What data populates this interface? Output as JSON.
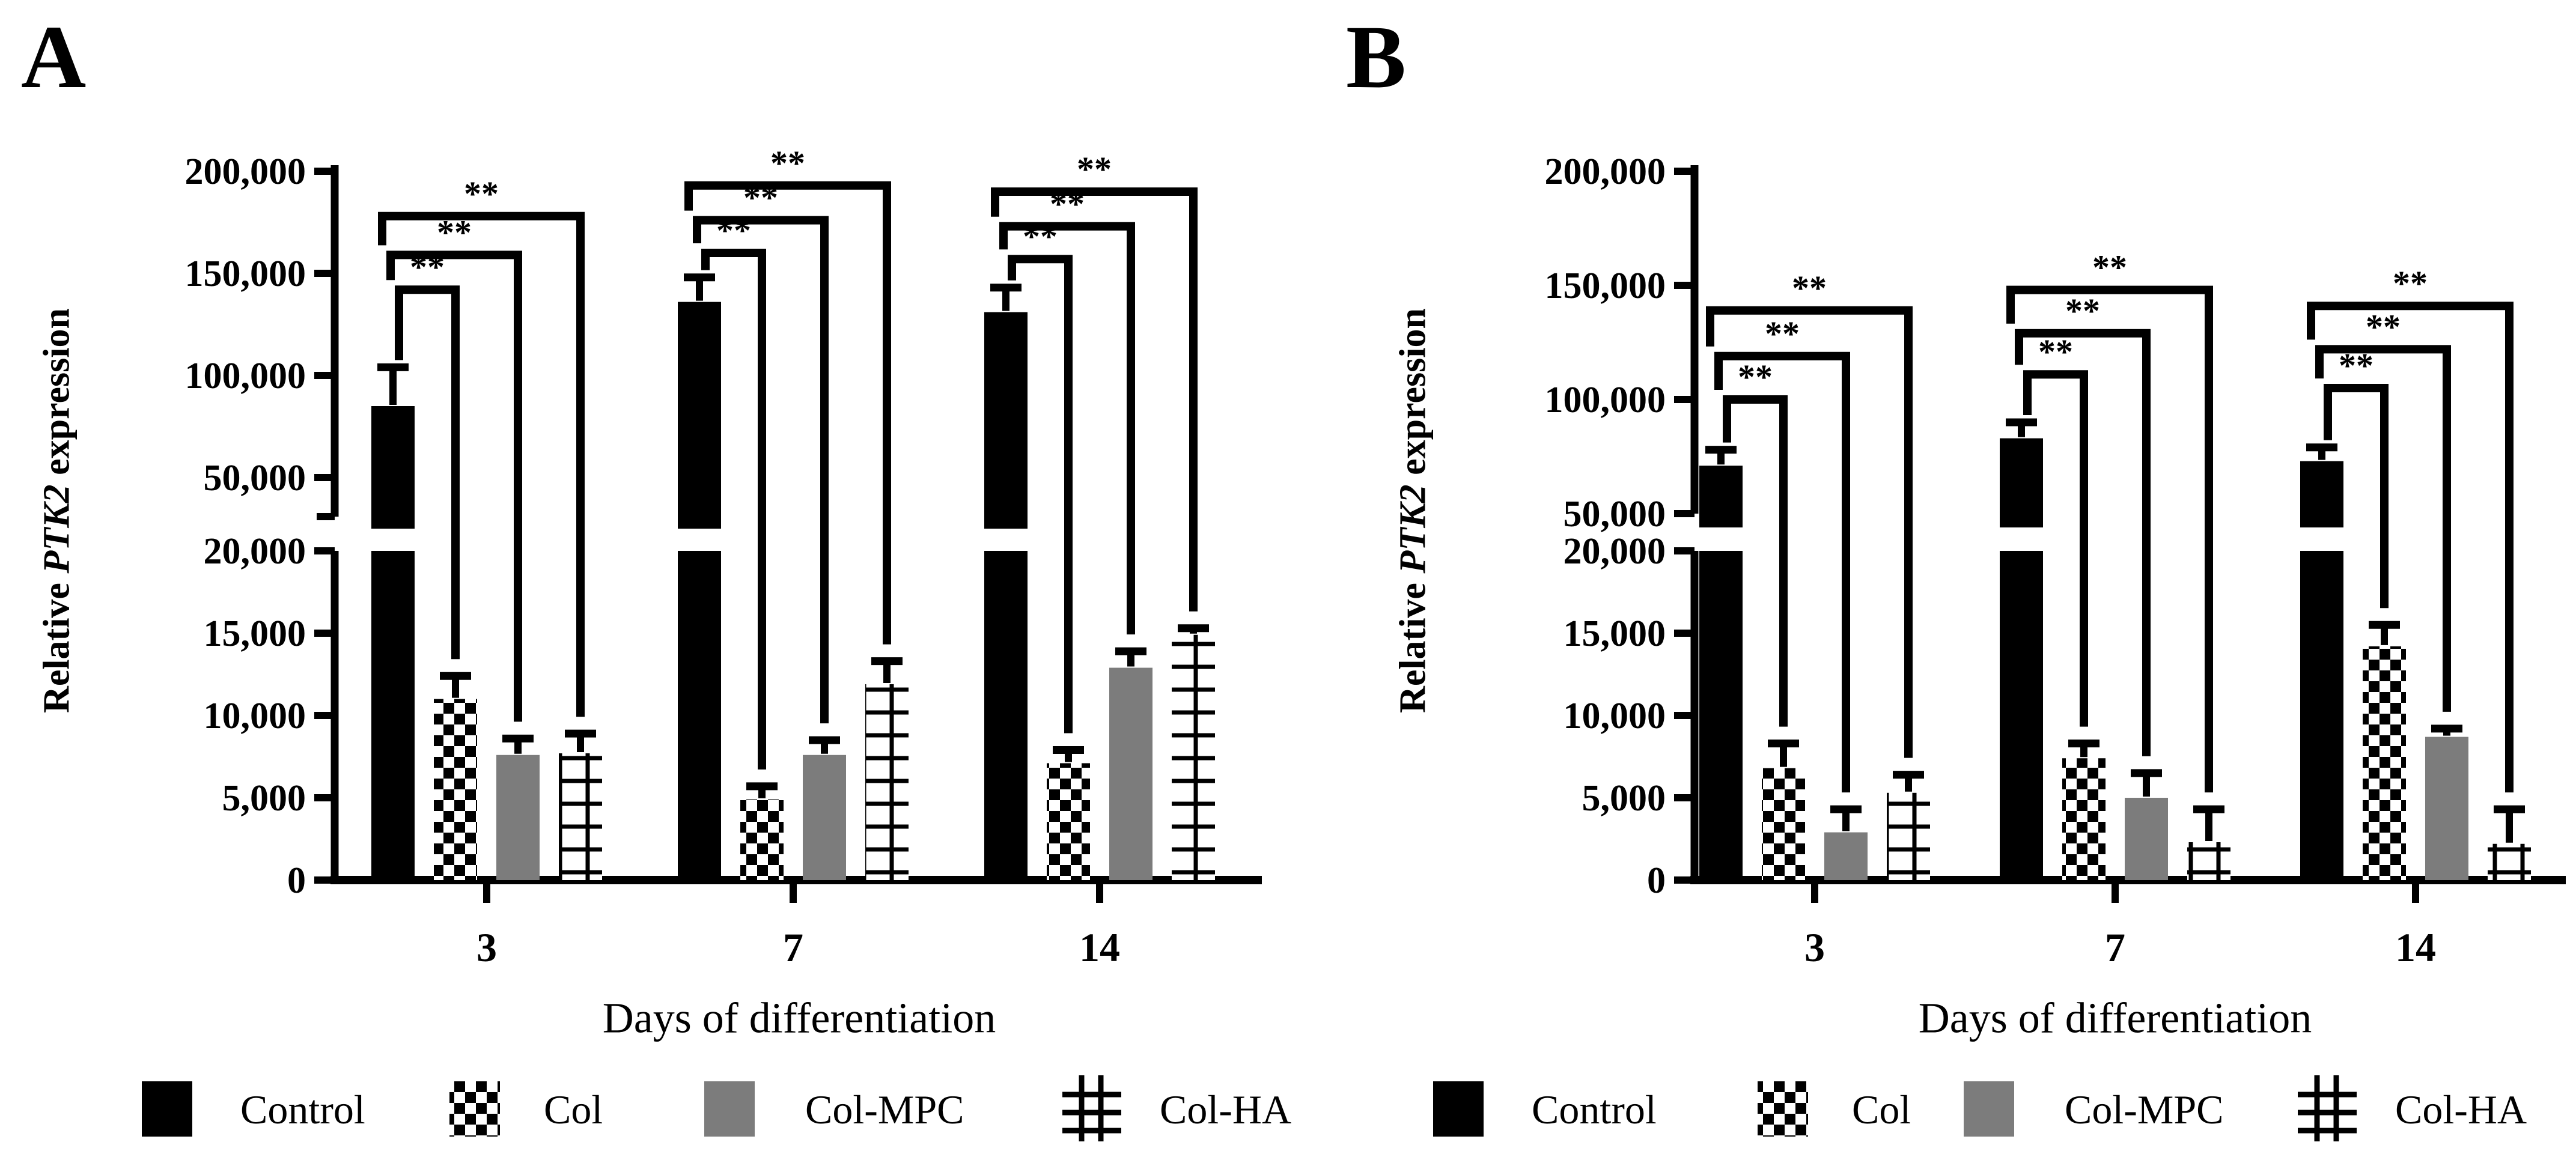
{
  "figure": {
    "panels": [
      {
        "letter": "A",
        "y_label_prefix": "Relative ",
        "y_label_gene": "PTK2",
        "y_label_suffix": " expression",
        "x_title": "Days of differentiation"
      },
      {
        "letter": "B",
        "y_label_prefix": "Relative ",
        "y_label_gene": "PTK2",
        "y_label_suffix": " expression",
        "x_title": "Days of differentiation"
      }
    ],
    "legend": [
      {
        "label": "Control",
        "pattern": "solid-black",
        "color": "#000000"
      },
      {
        "label": "Col",
        "pattern": "checkerboard"
      },
      {
        "label": "Col-MPC",
        "pattern": "solid-gray",
        "color": "#7c7c7c"
      },
      {
        "label": "Col-HA",
        "pattern": "hash-grid"
      }
    ],
    "significance_label": "**",
    "colors": {
      "bar_black": "#000000",
      "bar_gray": "#7c7c7c",
      "axis": "#000000",
      "background": "#ffffff"
    }
  },
  "chart_data": [
    {
      "type": "bar",
      "panel": "A",
      "title": "A",
      "ylabel": "Relative PTK2 expression",
      "xlabel": "Days of differentiation",
      "categories": [
        "3",
        "7",
        "14"
      ],
      "axis_break": {
        "lower_range": [
          0,
          20000
        ],
        "upper_range": [
          30000,
          200000
        ]
      },
      "lower_ticks": {
        "values": [
          0,
          5000,
          10000,
          15000,
          20000
        ],
        "labels": [
          "0",
          "5,000",
          "10,000",
          "15,000",
          "20,000"
        ]
      },
      "upper_ticks": {
        "values": [
          50000,
          100000,
          150000,
          200000
        ],
        "labels": [
          "50,000",
          "100,000",
          "150,000",
          "200,000"
        ]
      },
      "series": [
        {
          "name": "Control",
          "pattern": "solid-black",
          "values": [
            85000,
            136000,
            131000
          ],
          "errors": [
            19000,
            12000,
            12000
          ]
        },
        {
          "name": "Col",
          "pattern": "checkerboard",
          "values": [
            11000,
            4900,
            7100
          ],
          "errors": [
            1400,
            800,
            800
          ]
        },
        {
          "name": "Col-MPC",
          "pattern": "solid-gray",
          "values": [
            7600,
            7600,
            12900
          ],
          "errors": [
            1000,
            900,
            1000
          ]
        },
        {
          "name": "Col-HA",
          "pattern": "hash-grid",
          "values": [
            7700,
            11900,
            14900
          ],
          "errors": [
            1200,
            1400,
            400
          ]
        }
      ],
      "significance": {
        "label": "**",
        "comparisons": "Control vs Col, Col-MPC, Col-HA in each group",
        "bracket_levels": [
          [
            142000,
            159000,
            178000
          ],
          [
            160000,
            176000,
            193000
          ],
          [
            157000,
            173000,
            190000
          ]
        ]
      }
    },
    {
      "type": "bar",
      "panel": "B",
      "title": "B",
      "ylabel": "Relative PTK2 expression",
      "xlabel": "Days of differentiation",
      "categories": [
        "3",
        "7",
        "14"
      ],
      "axis_break": {
        "lower_range": [
          0,
          20000
        ],
        "upper_range": [
          50000,
          200000
        ]
      },
      "lower_ticks": {
        "values": [
          0,
          5000,
          10000,
          15000,
          20000
        ],
        "labels": [
          "0",
          "5,000",
          "10,000",
          "15,000",
          "20,000"
        ]
      },
      "upper_ticks": {
        "values": [
          50000,
          100000,
          150000,
          200000
        ],
        "labels": [
          "50,000",
          "100,000",
          "150,000",
          "200,000"
        ]
      },
      "series": [
        {
          "name": "Control",
          "pattern": "solid-black",
          "values": [
            71000,
            83000,
            73000
          ],
          "errors": [
            7000,
            7000,
            6000
          ]
        },
        {
          "name": "Col",
          "pattern": "checkerboard",
          "values": [
            6800,
            7400,
            14200
          ],
          "errors": [
            1500,
            900,
            1300
          ]
        },
        {
          "name": "Col-MPC",
          "pattern": "solid-gray",
          "values": [
            2900,
            5000,
            8700
          ],
          "errors": [
            1400,
            1500,
            500
          ]
        },
        {
          "name": "Col-HA",
          "pattern": "hash-grid",
          "values": [
            5300,
            2300,
            2200
          ],
          "errors": [
            1100,
            2000,
            2100
          ]
        }
      ],
      "significance": {
        "label": "**",
        "comparisons": "Control vs Col, Col-MPC, Col-HA in each group",
        "bracket_levels": [
          [
            100000,
            119000,
            139000
          ],
          [
            111000,
            129000,
            148000
          ],
          [
            105000,
            122000,
            141000
          ]
        ]
      }
    }
  ]
}
